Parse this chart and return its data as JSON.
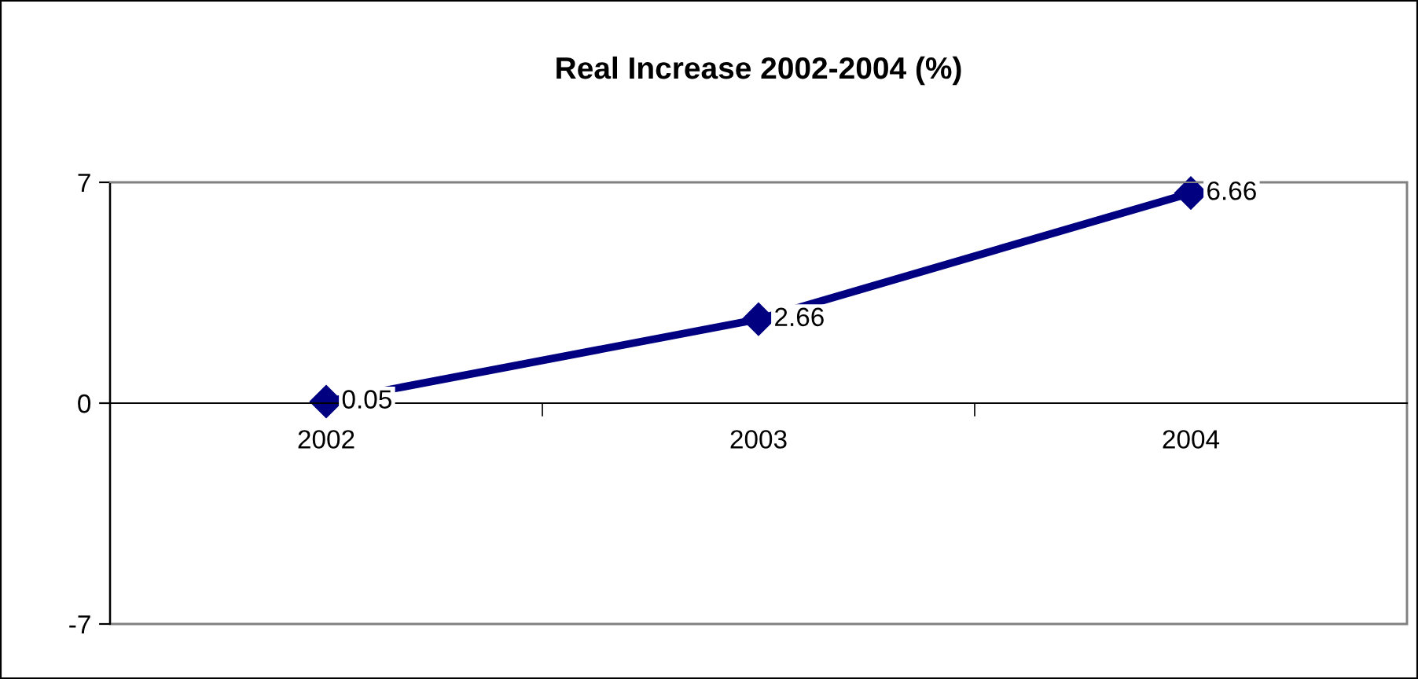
{
  "chart_data": {
    "type": "line",
    "title": "Real Increase 2002-2004 (%)",
    "categories": [
      "2002",
      "2003",
      "2004"
    ],
    "series": [
      {
        "color": "#000080",
        "values": [
          0.05,
          2.66,
          6.66
        ]
      }
    ],
    "ylim": [
      -7,
      7
    ],
    "yticks": [
      -7,
      0,
      7
    ],
    "marker": "diamond",
    "line_style": "solid",
    "data_labels": true,
    "grid": false,
    "legend": false
  }
}
